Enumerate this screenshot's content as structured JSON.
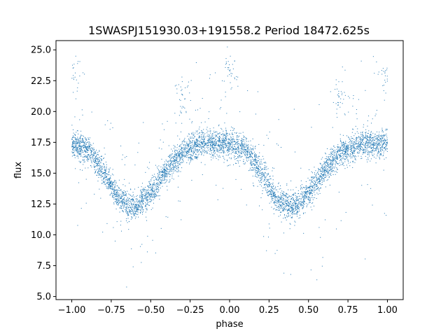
{
  "chart_data": {
    "type": "scatter",
    "title": "1SWASPJ151930.03+191558.2 Period 18472.625s",
    "xlabel": "phase",
    "ylabel": "flux",
    "xlim": [
      -1.1,
      1.1
    ],
    "ylim": [
      4.75,
      25.75
    ],
    "xticks": [
      -1.0,
      -0.75,
      -0.5,
      -0.25,
      0.0,
      0.25,
      0.5,
      0.75,
      1.0
    ],
    "xtick_labels": [
      "−1.00",
      "−0.75",
      "−0.50",
      "−0.25",
      "0.00",
      "0.25",
      "0.50",
      "0.75",
      "1.00"
    ],
    "yticks": [
      5.0,
      7.5,
      10.0,
      12.5,
      15.0,
      17.5,
      20.0,
      22.5,
      25.0
    ],
    "ytick_labels": [
      "5.0",
      "7.5",
      "10.0",
      "12.5",
      "15.0",
      "17.5",
      "20.0",
      "22.5",
      "25.0"
    ],
    "grid": false,
    "marker_color": "#1f77b4",
    "phase_range": [
      -1.0,
      1.0
    ],
    "model": {
      "description": "phase-folded light curve, repeated twice over phase -1..1",
      "points": [
        {
          "phase": 0.0,
          "flux": 17.4
        },
        {
          "phase": 0.1,
          "flux": 16.9
        },
        {
          "phase": 0.2,
          "flux": 15.1
        },
        {
          "phase": 0.3,
          "flux": 12.9
        },
        {
          "phase": 0.4,
          "flux": 12.2
        },
        {
          "phase": 0.5,
          "flux": 13.3
        },
        {
          "phase": 0.6,
          "flux": 15.2
        },
        {
          "phase": 0.7,
          "flux": 16.6
        },
        {
          "phase": 0.8,
          "flux": 17.3
        },
        {
          "phase": 0.9,
          "flux": 17.4
        },
        {
          "phase": 1.0,
          "flux": 17.4
        }
      ]
    },
    "outlier_clusters": [
      {
        "phase": 0.0,
        "flux": 23.0
      },
      {
        "phase": -1.0,
        "flux": 23.1
      },
      {
        "phase": 1.0,
        "flux": 23.0
      },
      {
        "phase": -0.3,
        "flux": 21.0
      },
      {
        "phase": 0.7,
        "flux": 21.0
      }
    ]
  }
}
